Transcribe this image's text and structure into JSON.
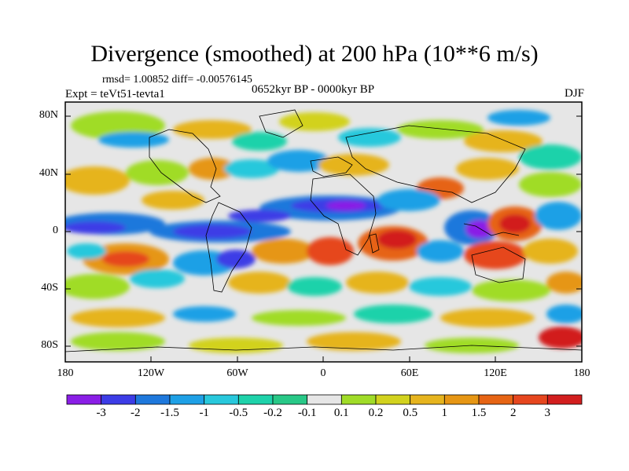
{
  "plot": {
    "title": "Divergence (smoothed) at 200 hPa (10**6 m/s)",
    "stats": "rmsd= 1.00852  diff= -0.00576145",
    "expt": "Expt = teVt51-tevta1",
    "period": "0652kyr BP - 0000kyr BP",
    "season": "DJF"
  },
  "axes": {
    "lat_labels": [
      "80N",
      "40N",
      "0",
      "40S",
      "80S"
    ],
    "lon_labels": [
      "180",
      "120W",
      "60W",
      "0",
      "60E",
      "120E",
      "180"
    ]
  },
  "colorbar": {
    "colors": [
      "#8a1ee6",
      "#3c3ce6",
      "#1e78dc",
      "#1ea0e6",
      "#28c8dc",
      "#1ed2aa",
      "#28c887",
      "#e6e6e6",
      "#a0dc28",
      "#d2d21e",
      "#e6b41e",
      "#e69614",
      "#e66414",
      "#e6461e",
      "#d21e1e"
    ],
    "labels": [
      "-3",
      "-2",
      "-1.5",
      "-1",
      "-0.5",
      "-0.2",
      "-0.1",
      "0.1",
      "0.2",
      "0.5",
      "1",
      "1.5",
      "2",
      "3"
    ]
  }
}
